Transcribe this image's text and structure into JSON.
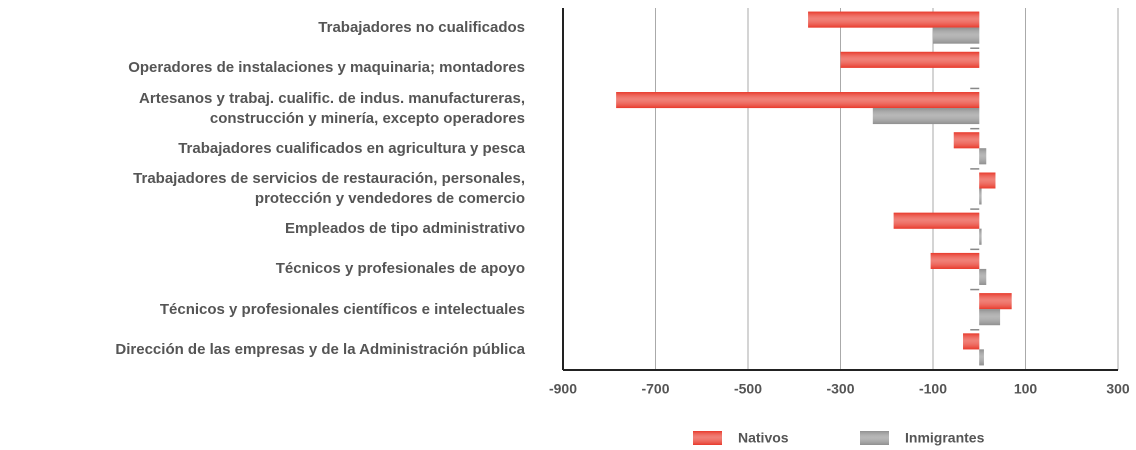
{
  "chart_data": {
    "type": "bar",
    "orientation": "horizontal",
    "categories": [
      "Trabajadores no cualificados",
      "Operadores de instalaciones y maquinaria; montadores",
      "Artesanos y trabaj. cualific. de indus. manufactureras,\nconstrucción y minería, excepto operadores",
      "Trabajadores cualificados en agricultura y pesca",
      "Trabajadores de servicios de restauración, personales,\nprotección y vendedores de comercio",
      "Empleados de tipo administrativo",
      "Técnicos y profesionales de apoyo",
      "Técnicos y profesionales científicos e intelectuales",
      "Dirección de las empresas y de la Administración pública"
    ],
    "series": [
      {
        "name": "Nativos",
        "color": "#e8392b",
        "values": [
          -370,
          -300,
          -785,
          -55,
          35,
          -185,
          -105,
          70,
          -35
        ]
      },
      {
        "name": "Inmigrantes",
        "color": "#8f8f8f",
        "values": [
          -100,
          0,
          -230,
          15,
          5,
          5,
          15,
          45,
          10
        ]
      }
    ],
    "xlim": [
      -900,
      300
    ],
    "xticks": [
      -900,
      -700,
      -500,
      -300,
      -100,
      100,
      300
    ],
    "grid": true,
    "legend": "bottom"
  }
}
